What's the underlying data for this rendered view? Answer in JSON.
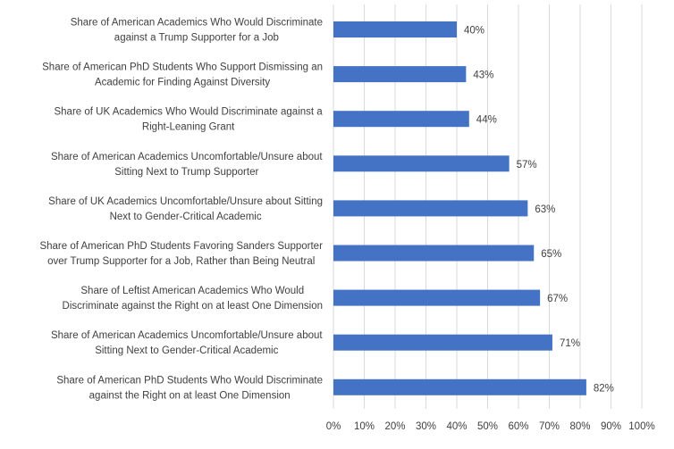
{
  "chart_data": {
    "type": "bar",
    "orientation": "horizontal",
    "title": "",
    "xlabel": "",
    "ylabel": "",
    "xlim": [
      0,
      100
    ],
    "grid": true,
    "bar_color": "#4472C4",
    "grid_color": "#d9d9d9",
    "text_color": "#404040",
    "x_ticks": [
      0,
      10,
      20,
      30,
      40,
      50,
      60,
      70,
      80,
      90,
      100
    ],
    "x_tick_labels": [
      "0%",
      "10%",
      "20%",
      "30%",
      "40%",
      "50%",
      "60%",
      "70%",
      "80%",
      "90%",
      "100%"
    ],
    "categories": [
      [
        "Share of American Academics Who Would Discriminate",
        "against a Trump Supporter for a Job"
      ],
      [
        "Share of American PhD Students Who Support Dismissing an",
        "Academic for Finding Against Diversity"
      ],
      [
        "Share of UK Academics Who Would Discriminate against a",
        "Right-Leaning Grant"
      ],
      [
        "Share of American Academics Uncomfortable/Unsure about",
        "Sitting Next to Trump Supporter"
      ],
      [
        "Share of UK Academics Uncomfortable/Unsure about Sitting",
        "Next to Gender-Critical Academic"
      ],
      [
        "Share of American PhD Students Favoring Sanders Supporter",
        "over Trump Supporter for a Job, Rather than Being Neutral"
      ],
      [
        "Share of Leftist American Academics Who Would",
        "Discriminate against the Right on at least One Dimension"
      ],
      [
        "Share of American Academics Uncomfortable/Unsure about",
        "Sitting Next to Gender-Critical Academic"
      ],
      [
        "Share of American PhD Students Who Would Discriminate",
        "against the Right on at least One Dimension"
      ]
    ],
    "values": [
      40,
      43,
      44,
      57,
      63,
      65,
      67,
      71,
      82
    ],
    "data_labels": [
      "40%",
      "43%",
      "44%",
      "57%",
      "63%",
      "65%",
      "67%",
      "71%",
      "82%"
    ]
  }
}
